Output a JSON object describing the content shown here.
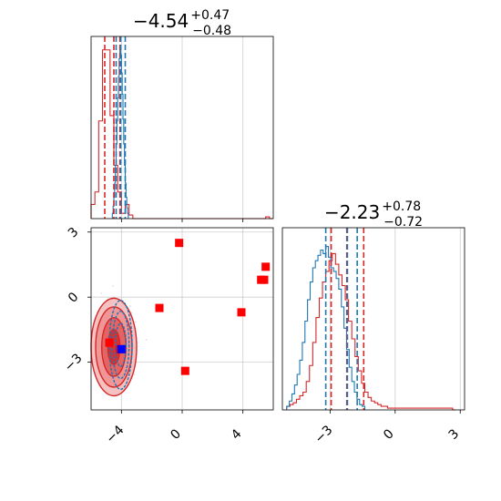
{
  "colors": {
    "red": "#d62728",
    "blue": "#1f77b4",
    "marker_red": "#ff0000",
    "marker_blue": "#0000ff",
    "grid": "#b0b0b0"
  },
  "chart_data": [
    {
      "panel": "top-left",
      "type": "histogram",
      "title": {
        "base": "−4.54",
        "plus": "+0.47",
        "minus": "−0.48"
      },
      "xlim": [
        -6.0,
        6.0
      ],
      "xticks": [
        -4,
        0,
        4
      ],
      "grid": true,
      "series": [
        {
          "color": "red",
          "edges_start": -6.0,
          "bin_width": 0.25,
          "values": [
            0.08,
            0.15,
            0.55,
            0.95,
            0.95,
            0.58,
            0.3,
            0.15,
            0.03,
            0.08,
            0.02,
            0,
            0,
            0,
            0,
            0,
            0,
            0,
            0,
            0,
            0,
            0,
            0,
            0,
            0,
            0,
            0,
            0,
            0,
            0,
            0,
            0,
            0,
            0,
            0,
            0,
            0,
            0,
            0,
            0,
            0,
            0,
            0,
            0,
            0,
            0,
            0.01,
            0
          ]
        },
        {
          "color": "blue",
          "edges_start": -4.6,
          "bin_width": 0.05,
          "values": [
            0.03,
            0.07,
            0.12,
            0.2,
            0.3,
            0.42,
            0.55,
            0.68,
            0.8,
            0.9,
            0.95,
            0.92,
            0.82,
            0.7,
            0.56,
            0.42,
            0.3,
            0.2,
            0.12,
            0.06,
            0.03
          ]
        }
      ],
      "quantile_lines": [
        {
          "color": "red",
          "x": [
            -5.1,
            -4.5,
            -4.1
          ]
        },
        {
          "color": "blue",
          "x": [
            -4.35,
            -4.05,
            -3.75
          ]
        }
      ]
    },
    {
      "panel": "bottom-left",
      "type": "scatter",
      "xlim": [
        -6.0,
        6.0
      ],
      "ylim": [
        -5.2,
        3.2
      ],
      "xticks": [
        -4,
        0,
        4
      ],
      "yticks": [
        3,
        0,
        -3
      ],
      "grid": true,
      "red_points": [
        [
          -0.2,
          2.5
        ],
        [
          -1.5,
          -0.5
        ],
        [
          3.9,
          -0.7
        ],
        [
          5.2,
          0.8
        ],
        [
          5.4,
          0.8
        ],
        [
          5.5,
          1.4
        ],
        [
          0.2,
          -3.4
        ],
        [
          -4.8,
          -2.1
        ],
        [
          -4.1,
          -2.4
        ]
      ],
      "blue_points": [
        [
          -4.0,
          -2.4
        ]
      ],
      "red_contours": [
        {
          "cx": -4.5,
          "cy": -2.3,
          "rx": 1.5,
          "ry": 2.25
        },
        {
          "cx": -4.5,
          "cy": -2.3,
          "rx": 1.2,
          "ry": 1.85
        },
        {
          "cx": -4.5,
          "cy": -2.3,
          "rx": 0.8,
          "ry": 1.35
        },
        {
          "cx": -4.5,
          "cy": -2.3,
          "rx": 0.4,
          "ry": 0.8
        }
      ],
      "blue_contours": [
        {
          "cx": -4.05,
          "cy": -2.2,
          "rx": 0.75,
          "ry": 2.05
        },
        {
          "cx": -4.05,
          "cy": -2.2,
          "rx": 0.55,
          "ry": 1.55
        },
        {
          "cx": -4.05,
          "cy": -2.2,
          "rx": 0.35,
          "ry": 1.0
        }
      ]
    },
    {
      "panel": "bottom-right",
      "type": "histogram",
      "title": {
        "base": "−2.23",
        "plus": "+0.78",
        "minus": "−0.72"
      },
      "xlim": [
        -5.2,
        3.2
      ],
      "xticks": [
        -3,
        0,
        3
      ],
      "grid": true,
      "series": [
        {
          "color": "red",
          "edges_start": -5.0,
          "bin_width": 0.15,
          "values": [
            0.02,
            0.03,
            0.04,
            0.06,
            0.08,
            0.1,
            0.16,
            0.25,
            0.38,
            0.52,
            0.63,
            0.72,
            0.78,
            0.84,
            0.88,
            0.82,
            0.76,
            0.7,
            0.62,
            0.5,
            0.4,
            0.3,
            0.22,
            0.15,
            0.1,
            0.07,
            0.05,
            0.04,
            0.03,
            0.02,
            0.02,
            0.01,
            0.01,
            0.01,
            0.01,
            0.01,
            0.01,
            0.01,
            0.01,
            0.01,
            0.01,
            0.01,
            0.01,
            0.01,
            0.01,
            0.01,
            0.01,
            0.01,
            0.01,
            0.01,
            0.01,
            0.0
          ]
        },
        {
          "color": "blue",
          "edges_start": -5.0,
          "bin_width": 0.12,
          "values": [
            0.02,
            0.05,
            0.09,
            0.14,
            0.2,
            0.28,
            0.38,
            0.5,
            0.62,
            0.72,
            0.8,
            0.84,
            0.87,
            0.9,
            0.88,
            0.92,
            0.86,
            0.8,
            0.78,
            0.74,
            0.68,
            0.58,
            0.46,
            0.34,
            0.24,
            0.16,
            0.1,
            0.06,
            0.03,
            0.02
          ]
        }
      ],
      "quantile_lines": [
        {
          "color": "red",
          "x": [
            -2.95,
            -2.23,
            -1.45
          ]
        },
        {
          "color": "blue",
          "x": [
            -3.2,
            -2.2,
            -1.75
          ]
        }
      ]
    }
  ]
}
